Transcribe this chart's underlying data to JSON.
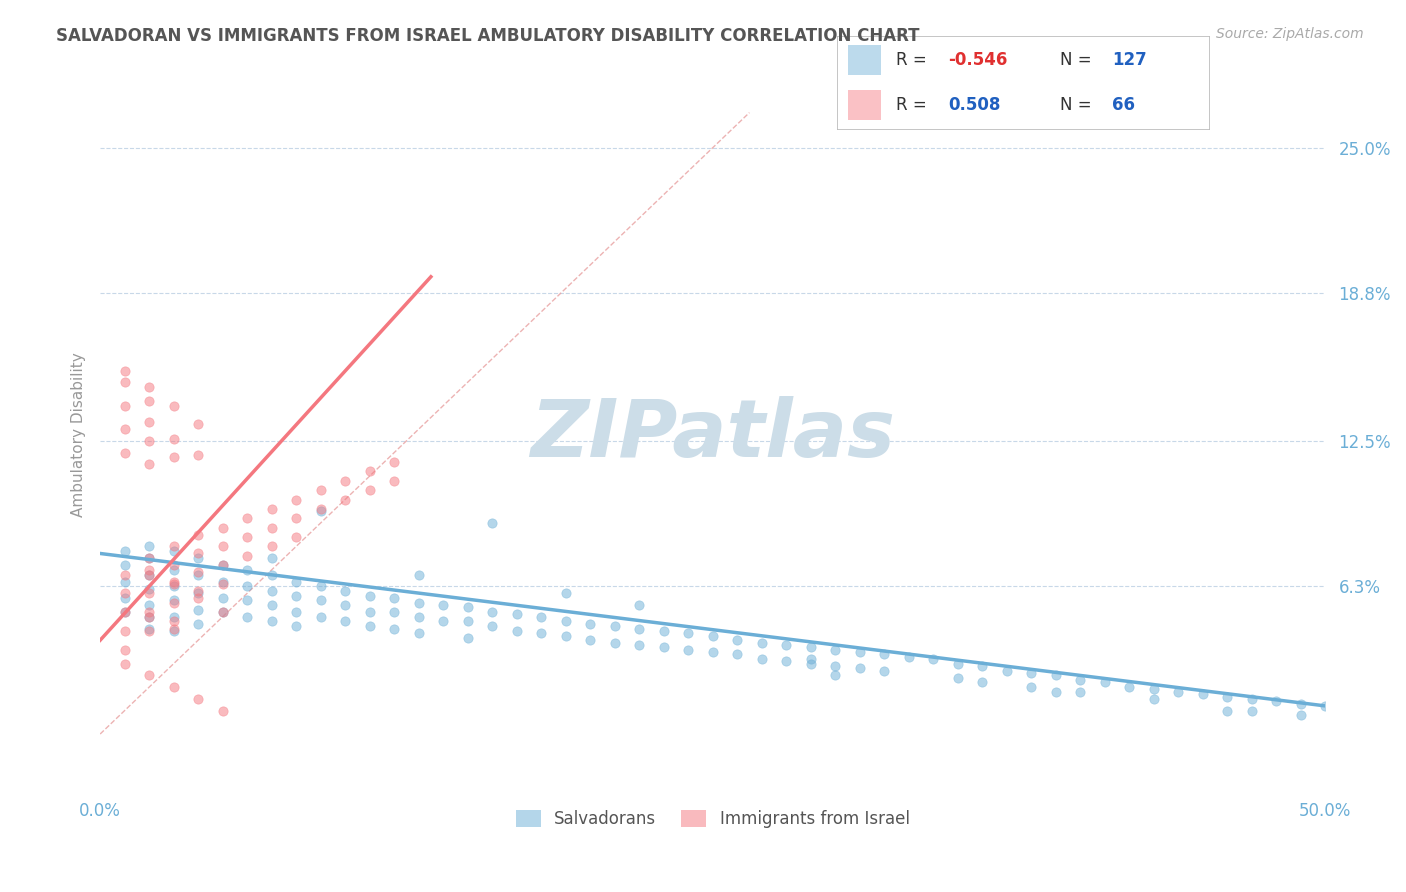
{
  "title": "SALVADORAN VS IMMIGRANTS FROM ISRAEL AMBULATORY DISABILITY CORRELATION CHART",
  "source": "Source: ZipAtlas.com",
  "ylabel": "Ambulatory Disability",
  "y_ticks": [
    0.063,
    0.125,
    0.188,
    0.25
  ],
  "y_tick_labels": [
    "6.3%",
    "12.5%",
    "18.8%",
    "25.0%"
  ],
  "x_min": 0.0,
  "x_max": 0.5,
  "y_min": -0.025,
  "y_max": 0.28,
  "blue_R": -0.546,
  "blue_N": 127,
  "pink_R": 0.508,
  "pink_N": 66,
  "blue_color": "#6baed6",
  "pink_color": "#f4777f",
  "blue_label": "Salvadorans",
  "pink_label": "Immigrants from Israel",
  "watermark": "ZIPatlas",
  "watermark_color": "#ccdde8",
  "background_color": "#ffffff",
  "grid_color": "#c8d8e8",
  "title_color": "#555555",
  "axis_label_color": "#6baed6",
  "blue_scatter_x": [
    0.01,
    0.01,
    0.01,
    0.01,
    0.01,
    0.02,
    0.02,
    0.02,
    0.02,
    0.02,
    0.02,
    0.02,
    0.03,
    0.03,
    0.03,
    0.03,
    0.03,
    0.03,
    0.04,
    0.04,
    0.04,
    0.04,
    0.04,
    0.05,
    0.05,
    0.05,
    0.05,
    0.06,
    0.06,
    0.06,
    0.06,
    0.07,
    0.07,
    0.07,
    0.07,
    0.08,
    0.08,
    0.08,
    0.08,
    0.09,
    0.09,
    0.09,
    0.1,
    0.1,
    0.1,
    0.11,
    0.11,
    0.11,
    0.12,
    0.12,
    0.12,
    0.13,
    0.13,
    0.13,
    0.14,
    0.14,
    0.15,
    0.15,
    0.15,
    0.16,
    0.16,
    0.17,
    0.17,
    0.18,
    0.18,
    0.19,
    0.19,
    0.2,
    0.2,
    0.21,
    0.21,
    0.22,
    0.22,
    0.23,
    0.23,
    0.24,
    0.24,
    0.25,
    0.25,
    0.26,
    0.26,
    0.27,
    0.27,
    0.28,
    0.28,
    0.29,
    0.29,
    0.3,
    0.3,
    0.31,
    0.31,
    0.32,
    0.32,
    0.33,
    0.34,
    0.35,
    0.35,
    0.36,
    0.37,
    0.38,
    0.38,
    0.39,
    0.4,
    0.4,
    0.41,
    0.42,
    0.43,
    0.44,
    0.45,
    0.46,
    0.47,
    0.47,
    0.48,
    0.49,
    0.49,
    0.5,
    0.3,
    0.36,
    0.22,
    0.16,
    0.09,
    0.39,
    0.43,
    0.46,
    0.29,
    0.19,
    0.13,
    0.07
  ],
  "blue_scatter_y": [
    0.078,
    0.072,
    0.065,
    0.058,
    0.052,
    0.08,
    0.075,
    0.068,
    0.062,
    0.055,
    0.05,
    0.045,
    0.078,
    0.07,
    0.063,
    0.057,
    0.05,
    0.044,
    0.075,
    0.068,
    0.06,
    0.053,
    0.047,
    0.072,
    0.065,
    0.058,
    0.052,
    0.07,
    0.063,
    0.057,
    0.05,
    0.068,
    0.061,
    0.055,
    0.048,
    0.065,
    0.059,
    0.052,
    0.046,
    0.063,
    0.057,
    0.05,
    0.061,
    0.055,
    0.048,
    0.059,
    0.052,
    0.046,
    0.058,
    0.052,
    0.045,
    0.056,
    0.05,
    0.043,
    0.055,
    0.048,
    0.054,
    0.048,
    0.041,
    0.052,
    0.046,
    0.051,
    0.044,
    0.05,
    0.043,
    0.048,
    0.042,
    0.047,
    0.04,
    0.046,
    0.039,
    0.045,
    0.038,
    0.044,
    0.037,
    0.043,
    0.036,
    0.042,
    0.035,
    0.04,
    0.034,
    0.039,
    0.032,
    0.038,
    0.031,
    0.037,
    0.03,
    0.036,
    0.029,
    0.035,
    0.028,
    0.034,
    0.027,
    0.033,
    0.032,
    0.03,
    0.024,
    0.029,
    0.027,
    0.026,
    0.02,
    0.025,
    0.023,
    0.018,
    0.022,
    0.02,
    0.019,
    0.018,
    0.017,
    0.016,
    0.015,
    0.01,
    0.014,
    0.013,
    0.008,
    0.012,
    0.025,
    0.022,
    0.055,
    0.09,
    0.095,
    0.018,
    0.015,
    0.01,
    0.032,
    0.06,
    0.068,
    0.075
  ],
  "pink_scatter_x": [
    0.01,
    0.01,
    0.01,
    0.01,
    0.01,
    0.02,
    0.02,
    0.02,
    0.02,
    0.02,
    0.03,
    0.03,
    0.03,
    0.03,
    0.03,
    0.04,
    0.04,
    0.04,
    0.04,
    0.05,
    0.05,
    0.05,
    0.05,
    0.06,
    0.06,
    0.06,
    0.07,
    0.07,
    0.07,
    0.08,
    0.08,
    0.08,
    0.09,
    0.09,
    0.1,
    0.1,
    0.11,
    0.11,
    0.12,
    0.12,
    0.01,
    0.02,
    0.01,
    0.02,
    0.03,
    0.01,
    0.02,
    0.03,
    0.04,
    0.01,
    0.02,
    0.01,
    0.02,
    0.03,
    0.04,
    0.01,
    0.02,
    0.03,
    0.04,
    0.05,
    0.02,
    0.03,
    0.02,
    0.03,
    0.04,
    0.05
  ],
  "pink_scatter_y": [
    0.068,
    0.06,
    0.052,
    0.044,
    0.036,
    0.075,
    0.068,
    0.06,
    0.052,
    0.044,
    0.08,
    0.072,
    0.064,
    0.056,
    0.048,
    0.085,
    0.077,
    0.069,
    0.061,
    0.088,
    0.08,
    0.072,
    0.064,
    0.092,
    0.084,
    0.076,
    0.096,
    0.088,
    0.08,
    0.1,
    0.092,
    0.084,
    0.104,
    0.096,
    0.108,
    0.1,
    0.112,
    0.104,
    0.116,
    0.108,
    0.12,
    0.115,
    0.13,
    0.125,
    0.118,
    0.14,
    0.133,
    0.126,
    0.119,
    0.15,
    0.142,
    0.155,
    0.148,
    0.14,
    0.132,
    0.03,
    0.025,
    0.02,
    0.015,
    0.01,
    0.05,
    0.045,
    0.07,
    0.065,
    0.058,
    0.052
  ],
  "blue_trend_x": [
    0.0,
    0.5
  ],
  "blue_trend_y": [
    0.077,
    0.012
  ],
  "pink_trend_x": [
    0.0,
    0.135
  ],
  "pink_trend_y": [
    0.04,
    0.195
  ],
  "diag_line_x": [
    0.0,
    0.265
  ],
  "diag_line_y": [
    0.0,
    0.265
  ]
}
